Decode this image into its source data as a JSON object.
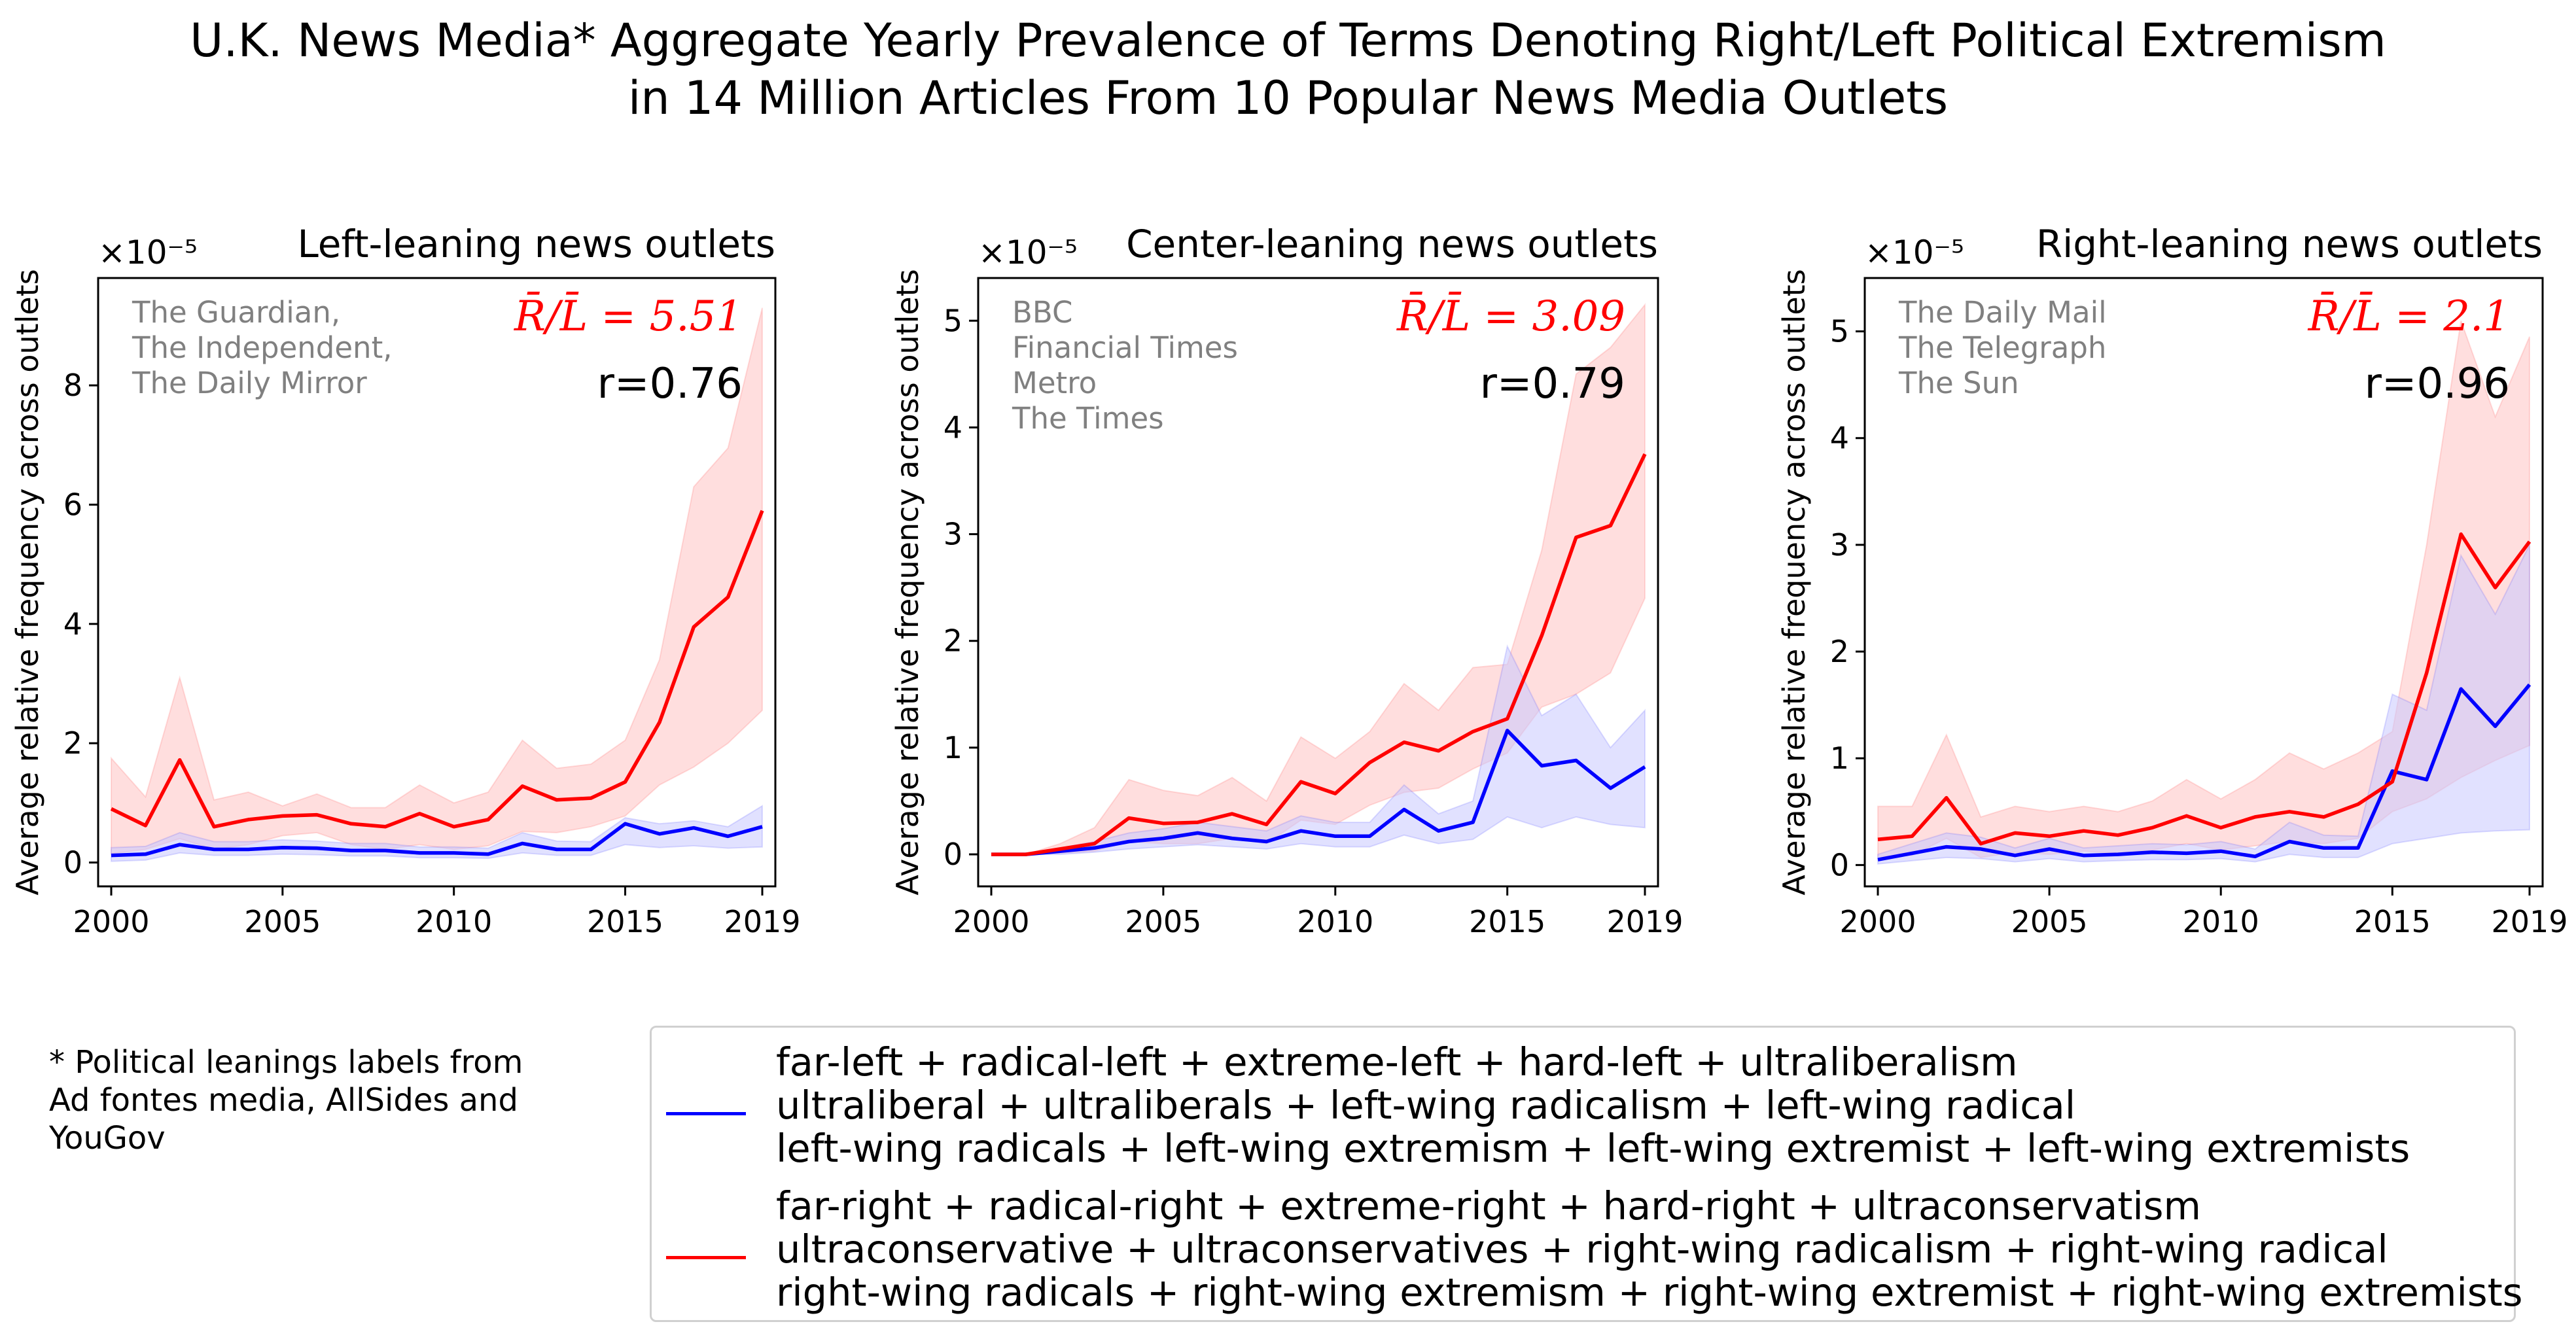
{
  "title": {
    "line1": "U.K. News Media* Aggregate Yearly Prevalence of Terms Denoting Right/Left Political Extremism",
    "line2": "in 14 Million Articles From 10 Popular News Media Outlets"
  },
  "footnote": "* Political leanings labels from\nAd fontes media, AllSides and\nYouGov",
  "colors": {
    "left_series": "#0000ff",
    "right_series": "#ff0000",
    "outlet_text": "#808080",
    "left_band": "#c8c8ff",
    "right_band": "#ffc8c8"
  },
  "legend": [
    {
      "name": "left-terms",
      "color": "#0000ff",
      "lines": [
        "far-left + radical-left + extreme-left + hard-left + ultraliberalism",
        "ultraliberal + ultraliberals + left-wing radicalism + left-wing radical",
        "left-wing radicals + left-wing extremism + left-wing extremist + left-wing extremists"
      ]
    },
    {
      "name": "right-terms",
      "color": "#ff0000",
      "lines": [
        "far-right + radical-right + extreme-right + hard-right + ultraconservatism",
        "ultraconservative + ultraconservatives + right-wing radicalism + right-wing radical",
        "right-wing radicals + right-wing extremism + right-wing extremist + right-wing extremists"
      ]
    }
  ],
  "chart_data": [
    {
      "type": "line",
      "title": "Left-leaning news outlets",
      "ylabel": "Average relative frequency across outlets",
      "xlabel": "",
      "y_multiplier": "×10⁻⁵",
      "x_ticks": [
        2000,
        2005,
        2010,
        2015,
        2019
      ],
      "y_ticks": [
        0,
        2,
        4,
        6,
        8
      ],
      "xlim": [
        2000,
        2019
      ],
      "ylim": [
        -0.4,
        9.8
      ],
      "outlets": [
        "The Guardian,",
        "The Independent,",
        "The Daily Mirror"
      ],
      "ratio_label": "R̄/L̄ = 5.51",
      "correlation_label": "r=0.76",
      "x": [
        2000,
        2001,
        2002,
        2003,
        2004,
        2005,
        2006,
        2007,
        2008,
        2009,
        2010,
        2011,
        2012,
        2013,
        2014,
        2015,
        2016,
        2017,
        2018,
        2019
      ],
      "series": [
        {
          "name": "left-terms",
          "color": "#0000ff",
          "values": [
            0.12,
            0.14,
            0.3,
            0.22,
            0.22,
            0.25,
            0.24,
            0.2,
            0.2,
            0.16,
            0.16,
            0.14,
            0.32,
            0.22,
            0.22,
            0.65,
            0.48,
            0.58,
            0.44,
            0.6
          ],
          "lower": [
            0.02,
            0.04,
            0.16,
            0.12,
            0.12,
            0.14,
            0.13,
            0.11,
            0.11,
            0.08,
            0.08,
            0.07,
            0.16,
            0.12,
            0.12,
            0.3,
            0.25,
            0.28,
            0.24,
            0.26
          ],
          "upper": [
            0.25,
            0.27,
            0.5,
            0.35,
            0.35,
            0.38,
            0.36,
            0.32,
            0.32,
            0.26,
            0.26,
            0.24,
            0.5,
            0.36,
            0.35,
            0.75,
            0.65,
            0.7,
            0.6,
            0.95
          ]
        },
        {
          "name": "right-terms",
          "color": "#ff0000",
          "values": [
            0.9,
            0.62,
            1.72,
            0.6,
            0.72,
            0.78,
            0.8,
            0.65,
            0.6,
            0.82,
            0.6,
            0.72,
            1.28,
            1.05,
            1.08,
            1.35,
            2.35,
            3.95,
            4.45,
            5.9
          ],
          "lower": [
            0.15,
            0.22,
            0.4,
            0.22,
            0.3,
            0.45,
            0.5,
            0.3,
            0.22,
            0.3,
            0.22,
            0.28,
            0.52,
            0.5,
            0.6,
            0.78,
            1.3,
            1.6,
            2.0,
            2.55
          ],
          "upper": [
            1.75,
            1.1,
            3.1,
            1.05,
            1.18,
            0.95,
            1.15,
            0.92,
            0.92,
            1.3,
            1.0,
            1.18,
            2.05,
            1.58,
            1.65,
            2.05,
            3.4,
            6.3,
            6.95,
            9.3
          ]
        }
      ]
    },
    {
      "type": "line",
      "title": "Center-leaning news outlets",
      "ylabel": "Average relative frequency across outlets",
      "xlabel": "",
      "y_multiplier": "×10⁻⁵",
      "x_ticks": [
        2000,
        2005,
        2010,
        2015,
        2019
      ],
      "y_ticks": [
        0,
        1,
        2,
        3,
        4,
        5
      ],
      "xlim": [
        2000,
        2019
      ],
      "ylim": [
        -0.3,
        5.4
      ],
      "outlets": [
        "BBC",
        "Financial Times",
        "Metro",
        "The Times"
      ],
      "ratio_label": "R̄/L̄ = 3.09",
      "correlation_label": "r=0.79",
      "x": [
        2000,
        2001,
        2002,
        2003,
        2004,
        2005,
        2006,
        2007,
        2008,
        2009,
        2010,
        2011,
        2012,
        2013,
        2014,
        2015,
        2016,
        2017,
        2018,
        2019
      ],
      "series": [
        {
          "name": "left-terms",
          "color": "#0000ff",
          "values": [
            0.0,
            0.0,
            0.03,
            0.06,
            0.12,
            0.15,
            0.2,
            0.15,
            0.12,
            0.22,
            0.17,
            0.17,
            0.42,
            0.22,
            0.3,
            1.16,
            0.83,
            0.88,
            0.62,
            0.82
          ],
          "lower": [
            0.0,
            0.0,
            0.0,
            0.02,
            0.05,
            0.07,
            0.09,
            0.07,
            0.05,
            0.1,
            0.07,
            0.07,
            0.18,
            0.1,
            0.14,
            0.35,
            0.25,
            0.35,
            0.28,
            0.25
          ],
          "upper": [
            0.0,
            0.0,
            0.06,
            0.12,
            0.2,
            0.24,
            0.3,
            0.26,
            0.22,
            0.36,
            0.3,
            0.3,
            0.65,
            0.38,
            0.5,
            1.95,
            1.3,
            1.5,
            1.0,
            1.35
          ]
        },
        {
          "name": "right-terms",
          "color": "#ff0000",
          "values": [
            0.0,
            0.0,
            0.05,
            0.1,
            0.34,
            0.29,
            0.3,
            0.38,
            0.28,
            0.68,
            0.57,
            0.86,
            1.05,
            0.97,
            1.15,
            1.27,
            2.05,
            2.97,
            3.08,
            3.75
          ],
          "lower": [
            0.0,
            0.0,
            0.01,
            0.03,
            0.12,
            0.1,
            0.1,
            0.15,
            0.1,
            0.32,
            0.28,
            0.46,
            0.58,
            0.62,
            0.8,
            0.95,
            1.38,
            1.5,
            1.7,
            2.4
          ],
          "upper": [
            0.0,
            0.0,
            0.1,
            0.25,
            0.7,
            0.6,
            0.55,
            0.72,
            0.5,
            1.1,
            0.9,
            1.15,
            1.6,
            1.35,
            1.75,
            1.78,
            2.85,
            4.5,
            4.75,
            5.15
          ]
        }
      ]
    },
    {
      "type": "line",
      "title": "Right-leaning news outlets",
      "ylabel": "Average relative frequency across outlets",
      "xlabel": "",
      "y_multiplier": "×10⁻⁵",
      "x_ticks": [
        2000,
        2005,
        2010,
        2015,
        2019
      ],
      "y_ticks": [
        0,
        1,
        2,
        3,
        4,
        5
      ],
      "xlim": [
        2000,
        2019
      ],
      "ylim": [
        -0.2,
        5.5
      ],
      "outlets": [
        "The Daily Mail",
        "The Telegraph",
        "The Sun"
      ],
      "ratio_label": "R̄/L̄ = 2.1",
      "correlation_label": "r=0.96",
      "x": [
        2000,
        2001,
        2002,
        2003,
        2004,
        2005,
        2006,
        2007,
        2008,
        2009,
        2010,
        2011,
        2012,
        2013,
        2014,
        2015,
        2016,
        2017,
        2018,
        2019
      ],
      "series": [
        {
          "name": "left-terms",
          "color": "#0000ff",
          "values": [
            0.05,
            0.11,
            0.17,
            0.15,
            0.09,
            0.15,
            0.09,
            0.1,
            0.12,
            0.11,
            0.13,
            0.08,
            0.22,
            0.16,
            0.16,
            0.88,
            0.8,
            1.65,
            1.3,
            1.69
          ],
          "lower": [
            0.01,
            0.04,
            0.07,
            0.06,
            0.03,
            0.06,
            0.03,
            0.04,
            0.05,
            0.05,
            0.06,
            0.03,
            0.1,
            0.07,
            0.07,
            0.2,
            0.25,
            0.3,
            0.32,
            0.33
          ],
          "upper": [
            0.1,
            0.2,
            0.3,
            0.26,
            0.16,
            0.25,
            0.16,
            0.18,
            0.2,
            0.19,
            0.22,
            0.15,
            0.4,
            0.28,
            0.27,
            1.6,
            1.45,
            2.9,
            2.35,
            3.0
          ]
        },
        {
          "name": "right-terms",
          "color": "#ff0000",
          "values": [
            0.24,
            0.27,
            0.63,
            0.2,
            0.3,
            0.27,
            0.32,
            0.28,
            0.35,
            0.46,
            0.35,
            0.45,
            0.5,
            0.45,
            0.57,
            0.78,
            1.8,
            3.1,
            2.6,
            3.03
          ],
          "lower": [
            0.08,
            0.09,
            0.25,
            0.07,
            0.12,
            0.1,
            0.13,
            0.11,
            0.14,
            0.2,
            0.14,
            0.18,
            0.22,
            0.2,
            0.25,
            0.5,
            0.62,
            0.82,
            0.98,
            1.12
          ],
          "upper": [
            0.55,
            0.55,
            1.22,
            0.45,
            0.55,
            0.5,
            0.55,
            0.5,
            0.6,
            0.8,
            0.62,
            0.8,
            1.05,
            0.9,
            1.05,
            1.25,
            3.0,
            5.1,
            4.2,
            4.95
          ]
        }
      ]
    }
  ]
}
